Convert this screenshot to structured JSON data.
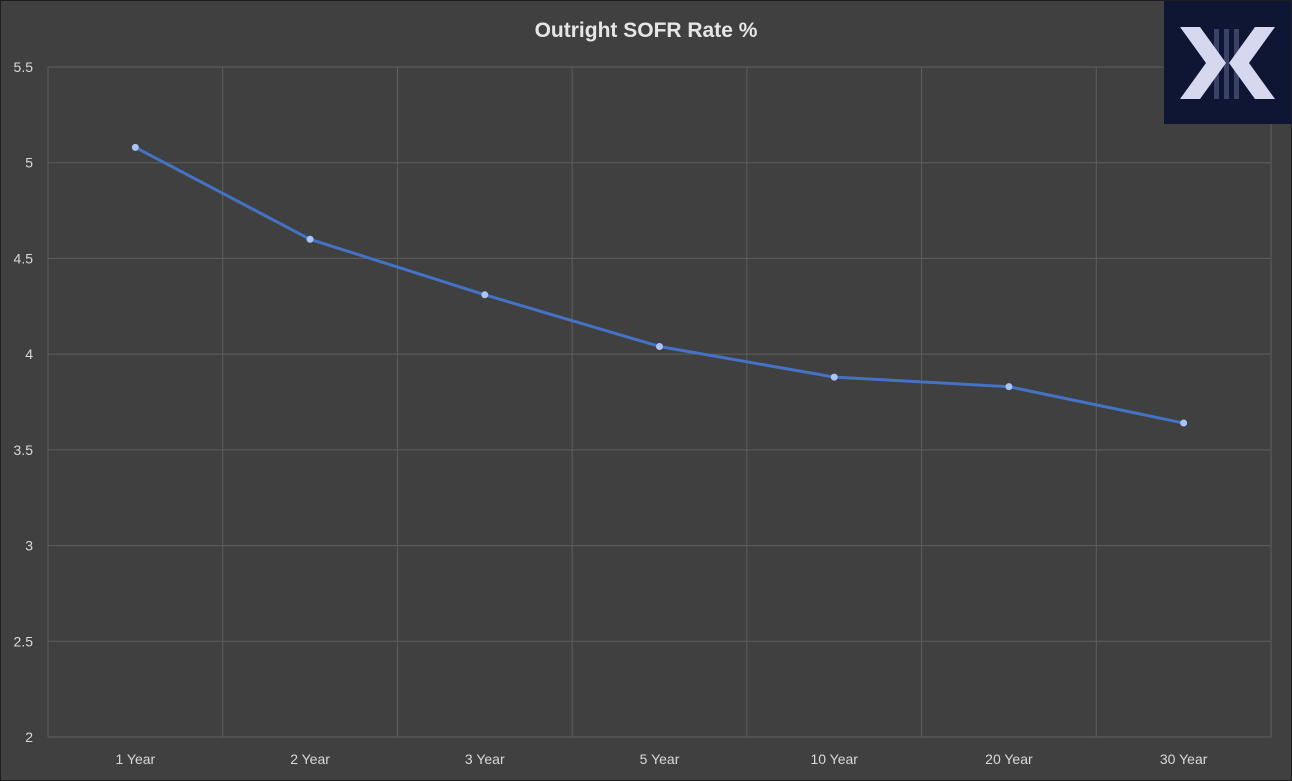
{
  "chart_data": {
    "type": "line",
    "title": "Outright SOFR Rate %",
    "xlabel": "",
    "ylabel": "",
    "categories": [
      "1 Year",
      "2 Year",
      "3 Year",
      "5 Year",
      "10 Year",
      "20 Year",
      "30 Year"
    ],
    "series": [
      {
        "name": "Outright SOFR Rate %",
        "values": [
          5.08,
          4.6,
          4.31,
          4.04,
          3.88,
          3.83,
          3.64
        ],
        "color": "#4472c4",
        "marker_color": "#a9c4f5"
      }
    ],
    "ylim": [
      2,
      5.5
    ],
    "yticks": [
      "2",
      "2.5",
      "3",
      "3.5",
      "4",
      "4.5",
      "5",
      "5.5"
    ],
    "ytick_values": [
      2,
      2.5,
      3,
      3.5,
      4,
      4.5,
      5,
      5.5
    ],
    "grid": true,
    "legend": "none"
  },
  "colors": {
    "background": "#404040",
    "grid": "#5e5e5e",
    "text": "#d9d9d9",
    "logo_bg": "#0f1633",
    "logo_fg": "#d6d8f0"
  },
  "logo": {
    "icon": "x-brand-logo"
  }
}
